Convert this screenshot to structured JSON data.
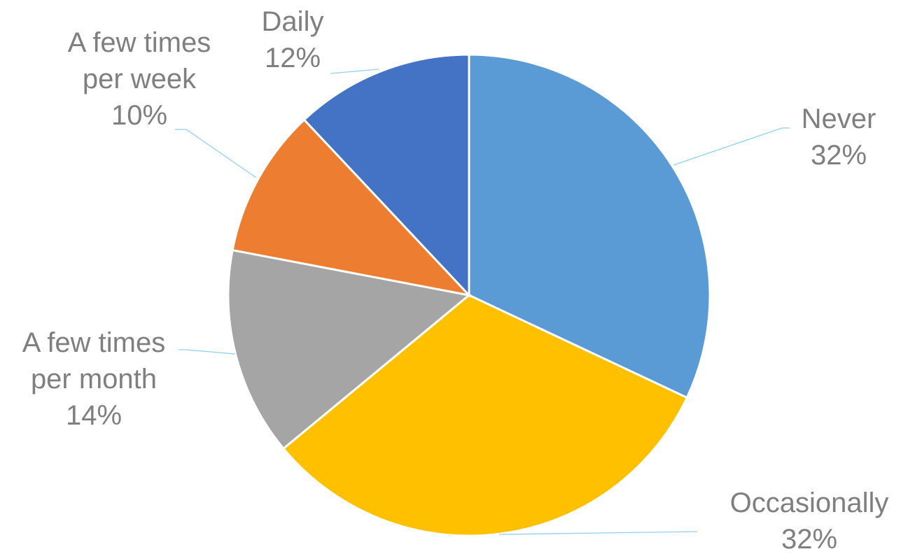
{
  "chart_data": {
    "type": "pie",
    "title": "",
    "legend": "none",
    "slices": [
      {
        "label": "Never",
        "value": 32,
        "value_label": "32%",
        "color": "#5b9bd5"
      },
      {
        "label": "Occasionally",
        "value": 32,
        "value_label": "32%",
        "color": "#ffc000"
      },
      {
        "label": "A few times per month",
        "label_lines": [
          "A few times",
          "per month"
        ],
        "value": 14,
        "value_label": "14%",
        "color": "#a5a5a5"
      },
      {
        "label": "A few times per week",
        "label_lines": [
          "A few times",
          "per week"
        ],
        "value": 10,
        "value_label": "10%",
        "color": "#ed7d31"
      },
      {
        "label": "Daily",
        "value": 12,
        "value_label": "12%",
        "color": "#4472c4"
      }
    ]
  }
}
